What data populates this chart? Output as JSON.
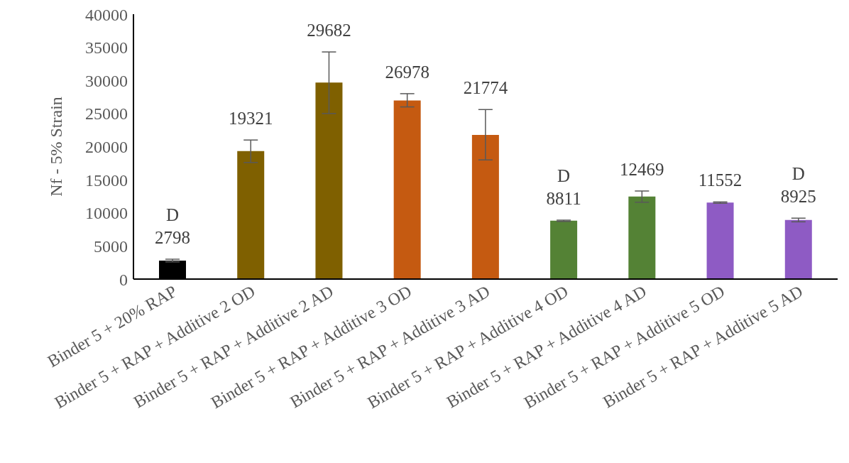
{
  "chart_data": {
    "type": "bar",
    "ylabel": "Nf - 5% Strain",
    "categories": [
      "Binder 5 + 20% RAP",
      "Binder 5 + RAP + Additive 2 OD",
      "Binder 5 + RAP + Additive 2 AD",
      "Binder 5 + RAP + Additive 3 OD",
      "Binder 5 + RAP + Additive 3 AD",
      "Binder 5 + RAP + Additive 4 OD",
      "Binder 5 + RAP + Additive 4 AD",
      "Binder 5 + RAP + Additive 5 OD",
      "Binder 5 + RAP + Additive 5 AD"
    ],
    "values": [
      2798,
      19321,
      29682,
      26978,
      21774,
      8811,
      12469,
      11552,
      8925
    ],
    "colors": [
      "#000000",
      "#7f6000",
      "#7f6000",
      "#c55a11",
      "#c55a11",
      "#548235",
      "#548235",
      "#8e5bc4",
      "#8e5bc4"
    ],
    "errors": [
      [
        2600,
        3000
      ],
      [
        17600,
        21000
      ],
      [
        25000,
        34300
      ],
      [
        26000,
        28000
      ],
      [
        18000,
        25600
      ],
      [
        8700,
        8900
      ],
      [
        11600,
        13300
      ],
      [
        11450,
        11650
      ],
      [
        8650,
        9200
      ]
    ],
    "data_labels": true,
    "annotations": [
      {
        "text": "D",
        "x": "Binder 5 + 20% RAP",
        "y": 2798
      },
      {
        "text": "D",
        "x": "Binder 5 + RAP + Additive 4 OD",
        "y": 8811
      },
      {
        "text": "D",
        "x": "Binder 5 + RAP + Additive 5 AD",
        "y": 8925
      }
    ],
    "ylim": [
      0,
      40000
    ],
    "yticks": [
      0,
      5000,
      10000,
      15000,
      20000,
      25000,
      30000,
      35000,
      40000
    ],
    "grid": false,
    "legend": false
  }
}
